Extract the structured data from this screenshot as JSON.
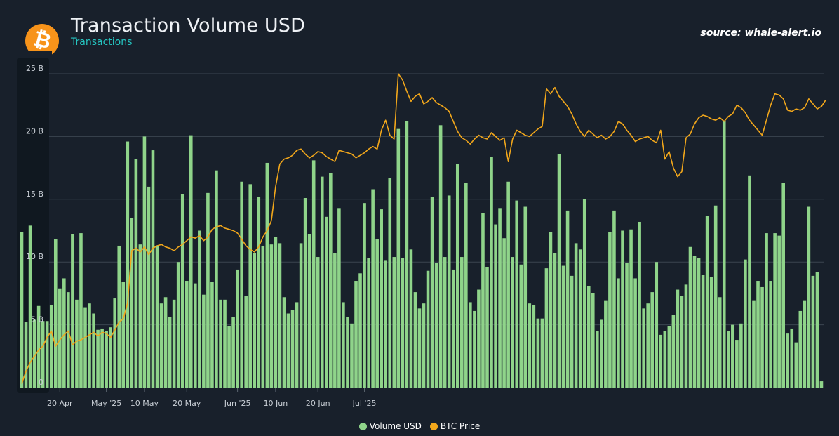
{
  "header": {
    "title": "Transaction Volume USD",
    "subtitle": "Transactions",
    "source": "source: whale-alert.io",
    "logo_glyph": "₿"
  },
  "colors": {
    "background": "#18202b",
    "bars": "#8fd48a",
    "line": "#f2a71b",
    "grid": "#3a4450",
    "subtitle": "#25c5c1",
    "logo": "#f7931a"
  },
  "chart_data": {
    "type": "bar",
    "title": "Transaction Volume USD",
    "subtitle": "Transactions",
    "xlabel": "",
    "ylabel": "",
    "x_ticks": [
      "20 Apr",
      "May '25",
      "10 May",
      "20 May",
      "Jun '25",
      "10 Jun",
      "20 Jun",
      "Jul '25"
    ],
    "y_ticks": [
      "0",
      "5 B",
      "10 B",
      "15 B",
      "20 B",
      "25 B"
    ],
    "ylim": [
      0,
      25
    ],
    "y_unit": "B",
    "grid": true,
    "legend_position": "bottom-center",
    "first_day": "11 Apr 2025",
    "series": [
      {
        "name": "Volume USD",
        "type": "bar",
        "values": [
          12.4,
          5.2,
          12.9,
          5.4,
          6.5,
          5.3,
          5.3,
          6.6,
          11.8,
          7.9,
          8.7,
          7.6,
          12.2,
          7.0,
          12.3,
          6.4,
          6.7,
          5.9,
          4.6,
          4.7,
          4.5,
          4.8,
          7.1,
          11.3,
          8.4,
          19.6,
          13.5,
          18.2,
          11.4,
          20.0,
          16.0,
          18.9,
          11.3,
          6.7,
          7.2,
          5.6,
          7.0,
          10.0,
          15.4,
          8.5,
          20.1,
          8.3,
          12.5,
          7.4,
          15.5,
          8.4,
          17.3,
          7.0,
          7.0,
          4.9,
          5.6,
          9.4,
          16.4,
          7.3,
          16.2,
          10.7,
          15.2,
          11.3,
          17.9,
          11.4,
          12.0,
          11.5,
          7.2,
          5.9,
          6.2,
          6.8,
          11.5,
          15.1,
          12.2,
          18.1,
          10.4,
          16.8,
          13.6,
          17.1,
          10.7,
          14.3,
          6.8,
          5.6,
          5.1,
          8.5,
          9.1,
          14.7,
          10.3,
          15.8,
          11.8,
          14.2,
          10.1,
          16.7,
          10.4,
          20.6,
          10.3,
          21.2,
          11.0,
          7.6,
          6.3,
          6.7,
          9.3,
          15.2,
          9.9,
          20.9,
          10.4,
          15.3,
          9.4,
          17.8,
          10.4,
          16.3,
          6.8,
          6.1,
          7.8,
          13.9,
          9.6,
          18.4,
          13.0,
          14.3,
          11.9,
          16.4,
          10.4,
          14.9,
          9.8,
          14.4,
          6.7,
          6.6,
          5.5,
          5.5,
          9.5,
          12.4,
          10.7,
          18.6,
          9.7,
          14.1,
          8.9,
          11.5,
          11.0,
          15.0,
          8.1,
          7.5,
          4.5,
          5.4,
          6.9,
          12.4,
          14.1,
          8.7,
          12.5,
          9.9,
          12.6,
          8.7,
          13.2,
          6.3,
          6.7,
          7.6,
          10.0,
          4.2,
          4.5,
          4.9,
          5.8,
          7.8,
          7.3,
          8.2,
          11.2,
          10.5,
          10.3,
          9.0,
          13.7,
          8.8,
          14.5,
          7.2,
          21.2,
          4.5,
          5.0,
          3.8,
          5.1,
          10.2,
          16.9,
          6.9,
          8.5,
          8.0,
          12.3,
          8.5,
          12.3,
          12.1,
          16.3,
          4.3,
          4.7,
          3.6,
          6.1,
          6.9,
          14.4,
          8.9,
          9.2,
          0.5
        ]
      },
      {
        "name": "BTC Price",
        "type": "line",
        "values": [
          0.3,
          1.3,
          2.0,
          2.5,
          3.0,
          3.3,
          4.0,
          4.5,
          3.3,
          3.8,
          4.2,
          4.5,
          3.4,
          3.7,
          3.8,
          4.0,
          4.2,
          4.4,
          4.1,
          4.4,
          4.3,
          4.0,
          4.6,
          5.2,
          5.5,
          6.7,
          10.9,
          11.1,
          10.8,
          11.2,
          10.6,
          11.1,
          11.3,
          11.4,
          11.2,
          11.1,
          10.9,
          11.2,
          11.4,
          11.7,
          12.0,
          11.9,
          12.1,
          11.7,
          12.0,
          12.6,
          12.8,
          12.9,
          12.7,
          12.6,
          12.5,
          12.3,
          11.8,
          11.3,
          11.0,
          10.8,
          11.2,
          12.0,
          12.5,
          13.3,
          16.0,
          17.8,
          18.2,
          18.3,
          18.5,
          18.9,
          19.0,
          18.6,
          18.3,
          18.5,
          18.8,
          18.7,
          18.4,
          18.2,
          18.0,
          18.9,
          18.8,
          18.7,
          18.6,
          18.3,
          18.5,
          18.7,
          19.0,
          19.2,
          19.0,
          20.5,
          21.3,
          20.1,
          19.8,
          25.0,
          24.5,
          23.6,
          22.8,
          23.2,
          23.4,
          22.6,
          22.8,
          23.1,
          22.7,
          22.5,
          22.3,
          22.0,
          21.2,
          20.4,
          19.9,
          19.7,
          19.4,
          19.8,
          20.1,
          19.9,
          19.8,
          20.3,
          20.0,
          19.7,
          19.9,
          18.0,
          19.8,
          20.5,
          20.3,
          20.1,
          20.0,
          20.3,
          20.6,
          20.8,
          23.8,
          23.4,
          23.9,
          23.2,
          22.8,
          22.4,
          21.8,
          21.0,
          20.4,
          20.0,
          20.5,
          20.2,
          19.9,
          20.1,
          19.8,
          20.0,
          20.4,
          21.2,
          21.0,
          20.5,
          20.1,
          19.6,
          19.8,
          19.9,
          20.0,
          19.7,
          19.5,
          20.5,
          18.2,
          18.8,
          17.5,
          16.8,
          17.2,
          19.9,
          20.2,
          21.0,
          21.5,
          21.7,
          21.6,
          21.4,
          21.3,
          21.5,
          21.2,
          21.6,
          21.8,
          22.5,
          22.3,
          21.9,
          21.3,
          20.9,
          20.5,
          20.1,
          21.3,
          22.5,
          23.4,
          23.3,
          23.0,
          22.1,
          22.0,
          22.2,
          22.1,
          22.3,
          23.0,
          22.6,
          22.2,
          22.4,
          22.9
        ]
      }
    ]
  }
}
